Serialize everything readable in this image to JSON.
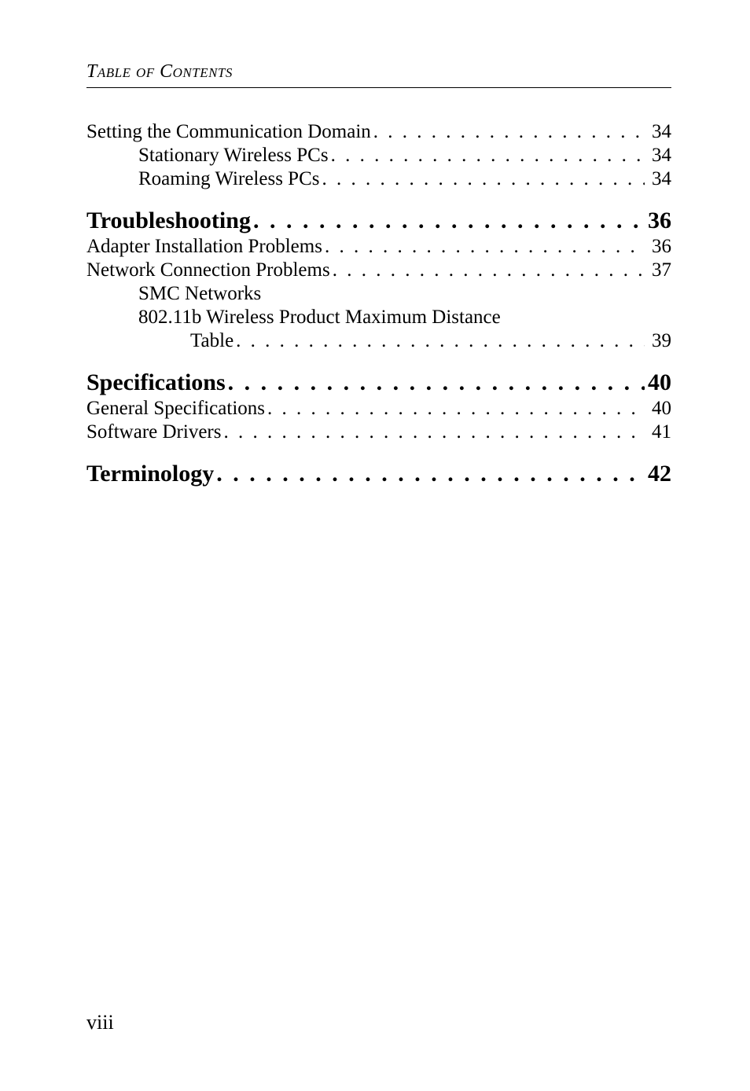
{
  "running_head": "Table of Contents",
  "folio": "viii",
  "colors": {
    "text": "#000000",
    "background": "#ffffff",
    "rule": "#000000"
  },
  "typography": {
    "body_font": "Garamond / serif",
    "running_head_size_pt": 18,
    "section_size_pt": 22,
    "entry_size_pt": 19,
    "folio_size_pt": 20
  },
  "toc": [
    {
      "level": 1,
      "label": "Setting the Communication Domain",
      "page": "34"
    },
    {
      "level": 2,
      "label": "Stationary Wireless PCs",
      "page": "34"
    },
    {
      "level": 2,
      "label": "Roaming Wireless PCs",
      "page": "34"
    },
    {
      "level": 0,
      "label": "Troubleshooting",
      "page": "36"
    },
    {
      "level": 1,
      "label": "Adapter Installation Problems",
      "page": "36"
    },
    {
      "level": 1,
      "label": "Network Connection Problems",
      "page": "37"
    },
    {
      "level": 3,
      "label": "SMC Networks",
      "page": ""
    },
    {
      "level": 3,
      "label": "802.11b Wireless Product Maximum Distance",
      "page": ""
    },
    {
      "level": 4,
      "label": "Table",
      "page": "39"
    },
    {
      "level": 0,
      "label": "Specifications",
      "page": "40"
    },
    {
      "level": 1,
      "label": "General Specifications",
      "page": "40"
    },
    {
      "level": 1,
      "label": "Software Drivers",
      "page": "41"
    },
    {
      "level": 0,
      "label": "Terminology",
      "page": "42"
    }
  ]
}
